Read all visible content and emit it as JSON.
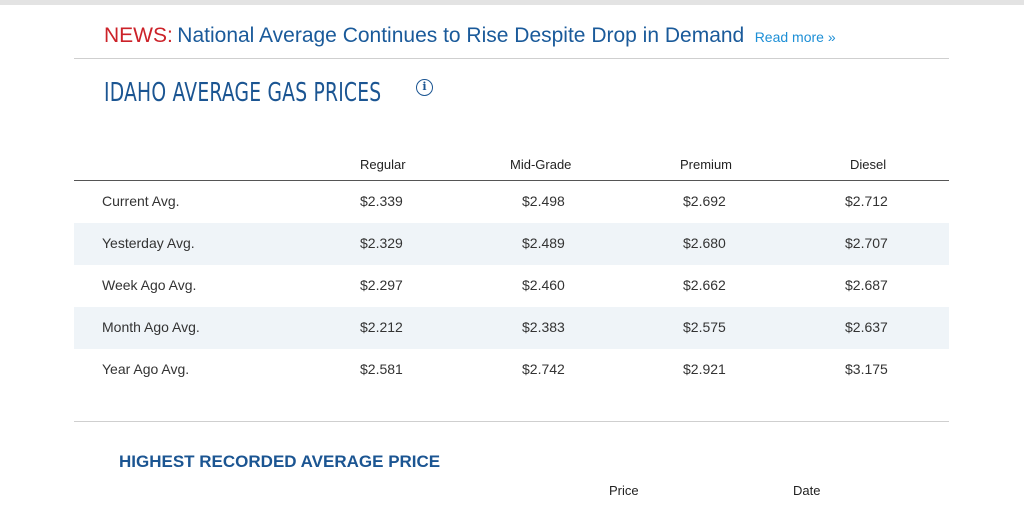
{
  "news": {
    "prefix": "NEWS:",
    "headline": "National Average Continues to Rise Despite Drop in Demand",
    "read_more": "Read more »"
  },
  "title": "IDAHO AVERAGE GAS PRICES",
  "info_glyph": "i",
  "table": {
    "headers": [
      "",
      "Regular",
      "Mid-Grade",
      "Premium",
      "Diesel"
    ],
    "rows": [
      [
        "Current Avg.",
        "$2.339",
        "$2.498",
        "$2.692",
        "$2.712"
      ],
      [
        "Yesterday Avg.",
        "$2.329",
        "$2.489",
        "$2.680",
        "$2.707"
      ],
      [
        "Week Ago Avg.",
        "$2.297",
        "$2.460",
        "$2.662",
        "$2.687"
      ],
      [
        "Month Ago Avg.",
        "$2.212",
        "$2.383",
        "$2.575",
        "$2.637"
      ],
      [
        "Year Ago Avg.",
        "$2.581",
        "$2.742",
        "$2.921",
        "$3.175"
      ]
    ]
  },
  "highest": {
    "title": "HIGHEST RECORDED AVERAGE PRICE",
    "headers": [
      "Price",
      "Date"
    ]
  },
  "colors": {
    "news_prefix": "#cc2229",
    "headline": "#1a5a9a",
    "link": "#1d8fd6",
    "title": "#1b5592",
    "row_alt": "#eff4f8"
  }
}
